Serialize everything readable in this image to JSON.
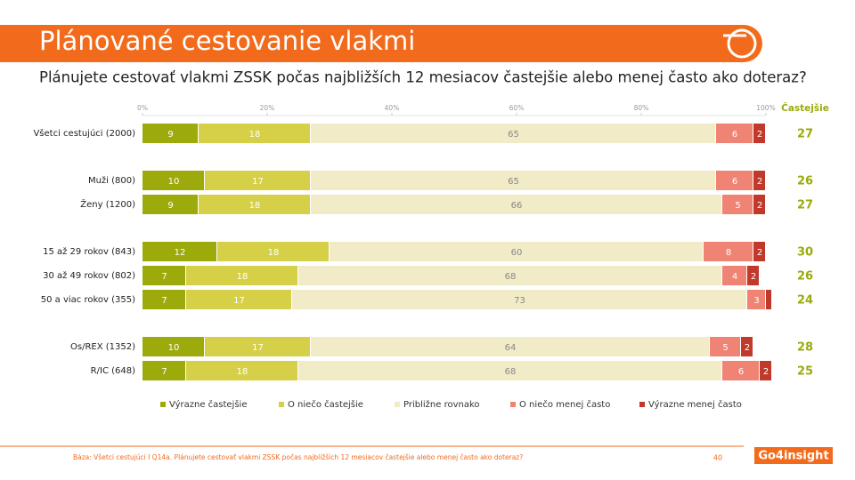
{
  "chart_data": {
    "type": "stacked-bar-horizontal",
    "title": "Plánované cestovanie vlakmi",
    "subtitle": "Plánujete cestovať vlakmi ZSSK počas najbližších 12 mesiacov častejšie alebo menej často ako doteraz?",
    "categories": [
      "Všetci cestujúci (2000)",
      "Muži (800)",
      "Ženy (1200)",
      "15 až 29 rokov (843)",
      "30 až 49 rokov (802)",
      "50 a viac rokov (355)",
      "Os/REX (1352)",
      "R/IC (648)"
    ],
    "series": [
      {
        "name": "Výrazne častejšie",
        "color": "#9caa0c",
        "label_color": "#ffffff",
        "values": [
          9,
          10,
          9,
          12,
          7,
          7,
          10,
          7
        ]
      },
      {
        "name": "O niečo častejšie",
        "color": "#d6d048",
        "label_color": "#ffffff",
        "values": [
          18,
          17,
          18,
          18,
          18,
          17,
          17,
          18
        ]
      },
      {
        "name": "Približne rovnako",
        "color": "#f1ebc7",
        "label_color": "#888888",
        "values": [
          65,
          65,
          66,
          60,
          68,
          73,
          64,
          68
        ]
      },
      {
        "name": "O niečo menej často",
        "color": "#f08474",
        "label_color": "#ffffff",
        "values": [
          6,
          6,
          5,
          8,
          4,
          3,
          5,
          6
        ]
      },
      {
        "name": "Výrazne menej často",
        "color": "#c0392b",
        "label_color": "#ffffff",
        "values": [
          2,
          2,
          2,
          2,
          2,
          1,
          2,
          2
        ],
        "value_labels": [
          "2",
          "2",
          "2",
          "2",
          "2",
          null,
          "2",
          "2"
        ]
      }
    ],
    "xlim": [
      0,
      100
    ],
    "xticks": [
      {
        "value": 0,
        "label": "0%"
      },
      {
        "value": 20,
        "label": "20%"
      },
      {
        "value": 40,
        "label": "40%"
      },
      {
        "value": 60,
        "label": "60%"
      },
      {
        "value": 80,
        "label": "80%"
      },
      {
        "value": 100,
        "label": "100%"
      }
    ],
    "totals": {
      "label": "Častejšie",
      "color": "#9caa0c",
      "values": [
        27,
        26,
        27,
        30,
        26,
        24,
        28,
        25
      ]
    },
    "footnote": "Báza: Všetci cestujúci I Q14a. Plánujete cestovať vlakmi ZSSK počas najbližších 12 mesiacov častejšie alebo menej často ako doteraz?",
    "page_number": "40",
    "brand": "Go4insight"
  }
}
